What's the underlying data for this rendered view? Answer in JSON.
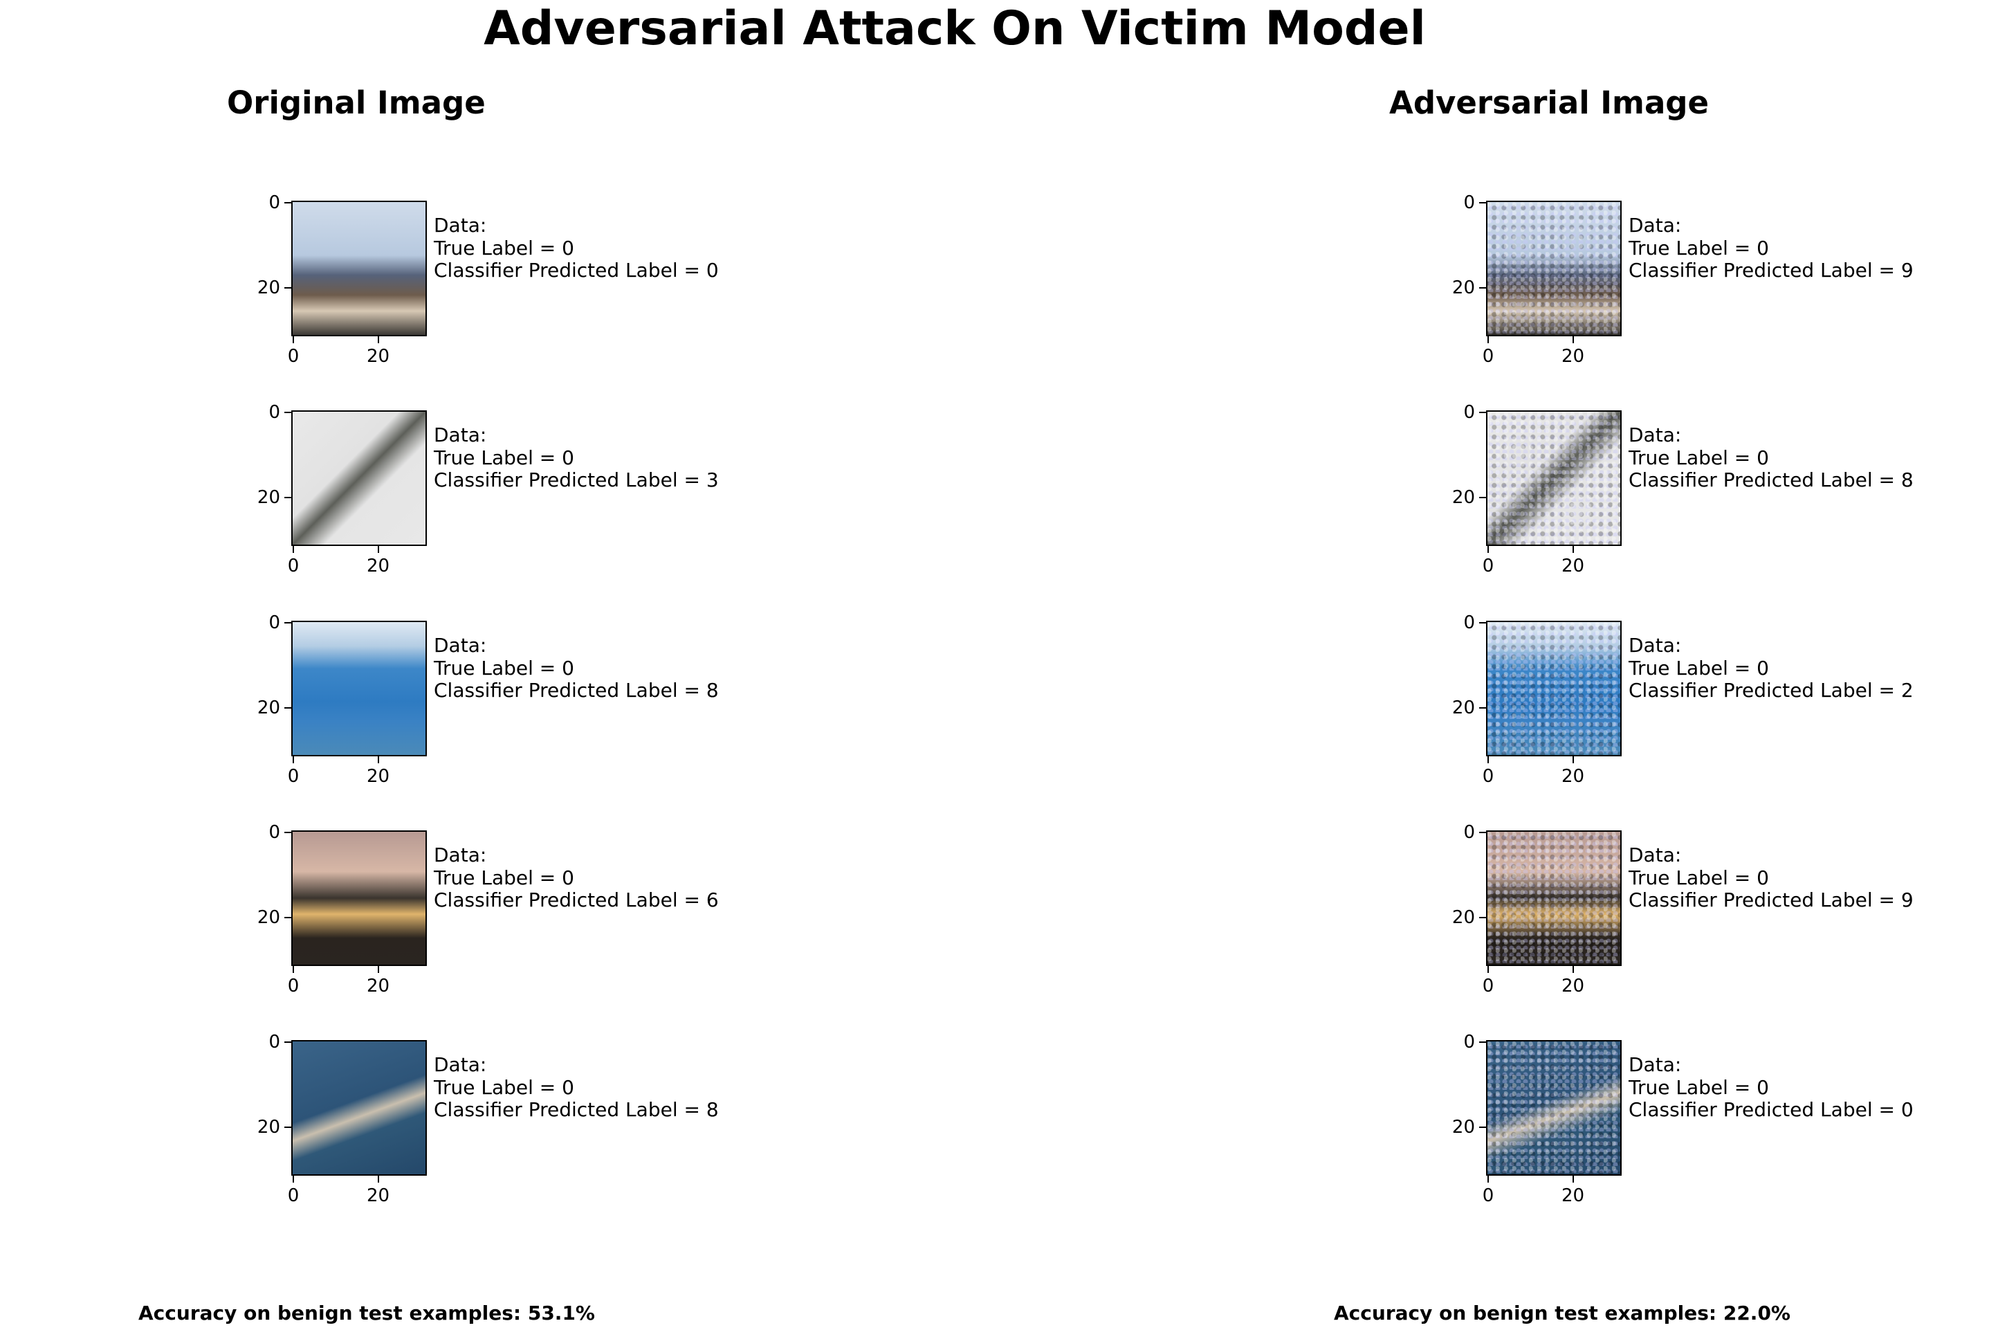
{
  "title": "Adversarial Attack On Victim Model",
  "columns": [
    {
      "title": "Original Image",
      "accuracy": "Accuracy on benign test examples: 53.1%",
      "panels": [
        {
          "image": "airplane-on-ground",
          "lines": [
            "Data:",
            "True Label = 0",
            "Classifier Predicted Label = 0"
          ]
        },
        {
          "image": "grey-airplane",
          "lines": [
            "Data:",
            "True Label = 0",
            "Classifier Predicted Label = 3"
          ]
        },
        {
          "image": "airliner-over-sea",
          "lines": [
            "Data:",
            "True Label = 0",
            "Classifier Predicted Label = 8"
          ]
        },
        {
          "image": "jet-at-sunset",
          "lines": [
            "Data:",
            "True Label = 0",
            "Classifier Predicted Label = 6"
          ]
        },
        {
          "image": "plane-over-blue",
          "lines": [
            "Data:",
            "True Label = 0",
            "Classifier Predicted Label = 8"
          ]
        }
      ]
    },
    {
      "title": "Adversarial Image",
      "accuracy": "Accuracy on benign test examples: 22.0%",
      "panels": [
        {
          "image": "airplane-on-ground-perturbed",
          "lines": [
            "Data:",
            "True Label = 0",
            "Classifier Predicted Label = 9"
          ]
        },
        {
          "image": "grey-airplane-perturbed",
          "lines": [
            "Data:",
            "True Label = 0",
            "Classifier Predicted Label = 8"
          ]
        },
        {
          "image": "airliner-over-sea-perturbed",
          "lines": [
            "Data:",
            "True Label = 0",
            "Classifier Predicted Label = 2"
          ]
        },
        {
          "image": "jet-at-sunset-perturbed",
          "lines": [
            "Data:",
            "True Label = 0",
            "Classifier Predicted Label = 9"
          ]
        },
        {
          "image": "plane-over-blue-perturbed",
          "lines": [
            "Data:",
            "True Label = 0",
            "Classifier Predicted Label = 0"
          ]
        }
      ]
    }
  ],
  "chart_data": {
    "type": "image-grid",
    "title": "Adversarial Attack On Victim Model",
    "subplots": [
      {
        "title": "Original Image",
        "x_ticks": [
          0,
          20
        ],
        "y_ticks": [
          0,
          20
        ],
        "xlim": [
          -0.5,
          31.5
        ],
        "ylim": [
          31.5,
          -0.5
        ],
        "true_labels": [
          0,
          0,
          0,
          0,
          0
        ],
        "predicted_labels": [
          0,
          3,
          8,
          6,
          8
        ],
        "accuracy_percent": 53.1
      },
      {
        "title": "Adversarial Image",
        "x_ticks": [
          0,
          20
        ],
        "y_ticks": [
          0,
          20
        ],
        "xlim": [
          -0.5,
          31.5
        ],
        "ylim": [
          31.5,
          -0.5
        ],
        "true_labels": [
          0,
          0,
          0,
          0,
          0
        ],
        "predicted_labels": [
          9,
          8,
          2,
          9,
          0
        ],
        "accuracy_percent": 22.0
      }
    ]
  }
}
